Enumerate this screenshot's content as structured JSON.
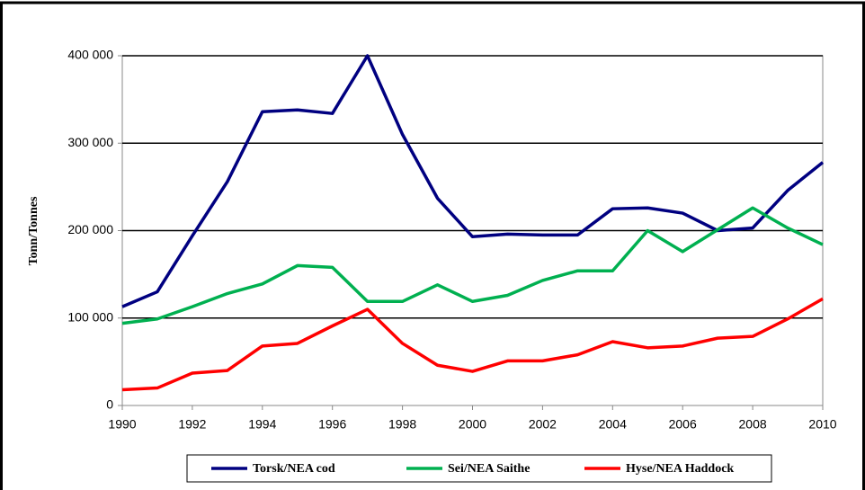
{
  "chart_data": {
    "type": "line",
    "ylabel": "Tonn/Tonnes",
    "x": [
      1990,
      1991,
      1992,
      1993,
      1994,
      1995,
      1996,
      1997,
      1998,
      1999,
      2000,
      2001,
      2002,
      2003,
      2004,
      2005,
      2006,
      2007,
      2008,
      2009,
      2010
    ],
    "series": [
      {
        "name": "Torsk/NEA cod",
        "color": "#000080",
        "values": [
          113000,
          130000,
          194000,
          256000,
          336000,
          338000,
          334000,
          400000,
          310000,
          237000,
          193000,
          196000,
          195000,
          195000,
          225000,
          226000,
          220000,
          200000,
          203000,
          246000,
          278000
        ]
      },
      {
        "name": "Sei/NEA Saithe",
        "color": "#00b050",
        "values": [
          94000,
          99000,
          113000,
          128000,
          139000,
          160000,
          158000,
          119000,
          119000,
          138000,
          119000,
          126000,
          143000,
          154000,
          154000,
          200000,
          176000,
          201000,
          226000,
          203000,
          184000
        ]
      },
      {
        "name": "Hyse/NEA Haddock",
        "color": "#ff0000",
        "values": [
          18000,
          20000,
          37000,
          40000,
          68000,
          71000,
          91000,
          110000,
          71000,
          46000,
          39000,
          51000,
          51000,
          58000,
          73000,
          66000,
          68000,
          77000,
          79000,
          99000,
          122000
        ]
      }
    ],
    "xlim": [
      1990,
      2010
    ],
    "xticks": [
      1990,
      1992,
      1994,
      1996,
      1998,
      2000,
      2002,
      2004,
      2006,
      2008,
      2010
    ],
    "ylim": [
      0,
      400000
    ],
    "yticks": [
      0,
      {
        "value": 100000,
        "label": "100 000"
      },
      {
        "value": 200000,
        "label": "200 000"
      },
      {
        "value": 300000,
        "label": "300 000"
      },
      {
        "value": 400000,
        "label": "400 000"
      }
    ],
    "grid": true,
    "legend": "bottom"
  }
}
